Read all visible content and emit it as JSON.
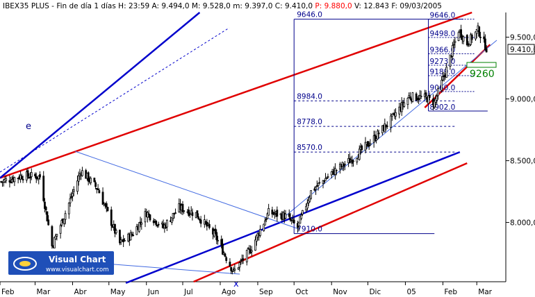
{
  "header": {
    "symbol": "IBEX35 PLUS",
    "timeframe": "Fin de día 1 días",
    "H": "H: 23:59",
    "A": "A: 9.494,0",
    "M": "M: 9.528,0",
    "m": "m: 9.397,0",
    "C": "C: 9.410,0",
    "P": "P: 9.880,0",
    "V": "V: 12.843",
    "F": "F: 09/03/2005"
  },
  "colors": {
    "candle": "#000000",
    "red_line": "#e00000",
    "blue_line": "#0000cc",
    "fib_line": "#00008b",
    "thin_blue": "#4169e1",
    "target_text": "#008000",
    "price_red": "#ff0000",
    "axis": "#000000"
  },
  "annotations": {
    "e_label": "e",
    "x_label": "x",
    "target": "9260",
    "last_price": "9.410,0"
  },
  "logo": {
    "title": "Visual Chart",
    "url": "www.visualchart.com"
  },
  "chart_data": {
    "type": "candlestick",
    "title": "IBEX35 PLUS",
    "x_labels": [
      "Feb",
      "Mar",
      "Abr",
      "May",
      "Jun",
      "Jul",
      "Ago",
      "Sep",
      "Oct",
      "Nov",
      "Dic",
      "05",
      "Feb",
      "Mar"
    ],
    "y_ticks": [
      "9.500,0",
      "9.000,0",
      "8.500,0",
      "8.000,0"
    ],
    "y_tick_values": [
      9500,
      9000,
      8500,
      8000
    ],
    "ylim": [
      7520,
      9700
    ],
    "fibonacci_levels": [
      {
        "value": 9646,
        "label": "9646.0"
      },
      {
        "value": 8984,
        "label": "8984.0"
      },
      {
        "value": 8778,
        "label": "8778.0"
      },
      {
        "value": 8570,
        "label": "8570.0"
      },
      {
        "value": 7910,
        "label": "7910.0"
      }
    ],
    "fibonacci_levels_zoom": [
      {
        "value": 9646,
        "label": "9646.0"
      },
      {
        "value": 9498,
        "label": "9498.0"
      },
      {
        "value": 9366,
        "label": "9366.0"
      },
      {
        "value": 9273,
        "label": "9273.0"
      },
      {
        "value": 9189,
        "label": "9189.0"
      },
      {
        "value": 9060,
        "label": "9060.0"
      },
      {
        "value": 8902,
        "label": "8902.0"
      }
    ],
    "series": [
      {
        "name": "IBEX35 PLUS",
        "anchors": [
          {
            "date": "2004-02-02",
            "close": 8330
          },
          {
            "date": "2004-02-20",
            "close": 8380
          },
          {
            "date": "2004-03-05",
            "close": 8370
          },
          {
            "date": "2004-03-15",
            "close": 7810
          },
          {
            "date": "2004-03-25",
            "close": 8050
          },
          {
            "date": "2004-04-08",
            "close": 8420
          },
          {
            "date": "2004-04-22",
            "close": 8270
          },
          {
            "date": "2004-05-10",
            "close": 7830
          },
          {
            "date": "2004-05-20",
            "close": 7900
          },
          {
            "date": "2004-06-01",
            "close": 8080
          },
          {
            "date": "2004-06-15",
            "close": 7960
          },
          {
            "date": "2004-06-28",
            "close": 8120
          },
          {
            "date": "2004-07-12",
            "close": 8070
          },
          {
            "date": "2004-07-28",
            "close": 7890
          },
          {
            "date": "2004-08-12",
            "close": 7600
          },
          {
            "date": "2004-08-26",
            "close": 7780
          },
          {
            "date": "2004-09-10",
            "close": 8080
          },
          {
            "date": "2004-09-24",
            "close": 8050
          },
          {
            "date": "2004-10-04",
            "close": 7960
          },
          {
            "date": "2004-10-15",
            "close": 8250
          },
          {
            "date": "2004-11-01",
            "close": 8400
          },
          {
            "date": "2004-11-19",
            "close": 8520
          },
          {
            "date": "2004-12-06",
            "close": 8680
          },
          {
            "date": "2004-12-20",
            "close": 8830
          },
          {
            "date": "2005-01-04",
            "close": 9020
          },
          {
            "date": "2005-01-18",
            "close": 9010
          },
          {
            "date": "2005-01-25",
            "close": 8970
          },
          {
            "date": "2005-02-04",
            "close": 9240
          },
          {
            "date": "2005-02-14",
            "close": 9560
          },
          {
            "date": "2005-02-21",
            "close": 9450
          },
          {
            "date": "2005-03-02",
            "close": 9560
          },
          {
            "date": "2005-03-09",
            "close": 9410
          }
        ]
      }
    ],
    "trendlines": [
      {
        "color": "red",
        "from": {
          "date": "2004-02-01",
          "value": 8360
        },
        "to": {
          "date": "2005-02-25",
          "value": 9700
        }
      },
      {
        "color": "blue",
        "from": {
          "date": "2004-02-01",
          "value": 8360
        },
        "to": {
          "date": "2004-07-15",
          "value": 9700
        }
      },
      {
        "color": "blue",
        "from": {
          "date": "2004-05-15",
          "value": 7510
        },
        "to": {
          "date": "2005-02-15",
          "value": 8570
        }
      },
      {
        "color": "red",
        "from": {
          "date": "2004-07-10",
          "value": 7520
        },
        "to": {
          "date": "2005-02-21",
          "value": 8480
        }
      },
      {
        "color": "red",
        "from": {
          "date": "2005-01-17",
          "value": 8930
        },
        "to": {
          "date": "2005-03-12",
          "value": 9440
        }
      }
    ],
    "grid": false
  }
}
